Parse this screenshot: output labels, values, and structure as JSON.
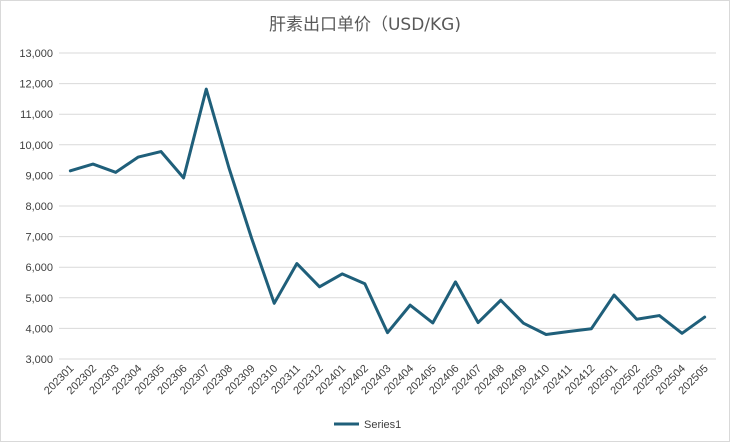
{
  "chart_data": {
    "type": "line",
    "title": "肝素出口单价（USD/KG)",
    "xlabel": "",
    "ylabel": "",
    "ylim": [
      3000,
      13000
    ],
    "yticks": [
      "3,000",
      "4,000",
      "5,000",
      "6,000",
      "7,000",
      "8,000",
      "9,000",
      "10,000",
      "11,000",
      "12,000",
      "13,000"
    ],
    "ytick_values": [
      3000,
      4000,
      5000,
      6000,
      7000,
      8000,
      9000,
      10000,
      11000,
      12000,
      13000
    ],
    "grid": true,
    "legend_position": "bottom",
    "categories": [
      "202301",
      "202302",
      "202303",
      "202304",
      "202305",
      "202306",
      "202307",
      "202308",
      "202309",
      "202310",
      "202311",
      "202312",
      "202401",
      "202402",
      "202403",
      "202404",
      "202405",
      "202406",
      "202407",
      "202408",
      "202409",
      "202410",
      "202411",
      "202412",
      "202501",
      "202502",
      "202503",
      "202504",
      "202505"
    ],
    "series": [
      {
        "name": "Series1",
        "color": "#1f5f7a",
        "values": [
          9150,
          9370,
          9100,
          9600,
          9780,
          8920,
          11820,
          9250,
          6950,
          4820,
          6120,
          5360,
          5780,
          5460,
          3860,
          4760,
          4180,
          5520,
          4190,
          4920,
          4170,
          3800,
          3900,
          3990,
          5090,
          4300,
          4420,
          3840,
          4370
        ]
      }
    ]
  }
}
